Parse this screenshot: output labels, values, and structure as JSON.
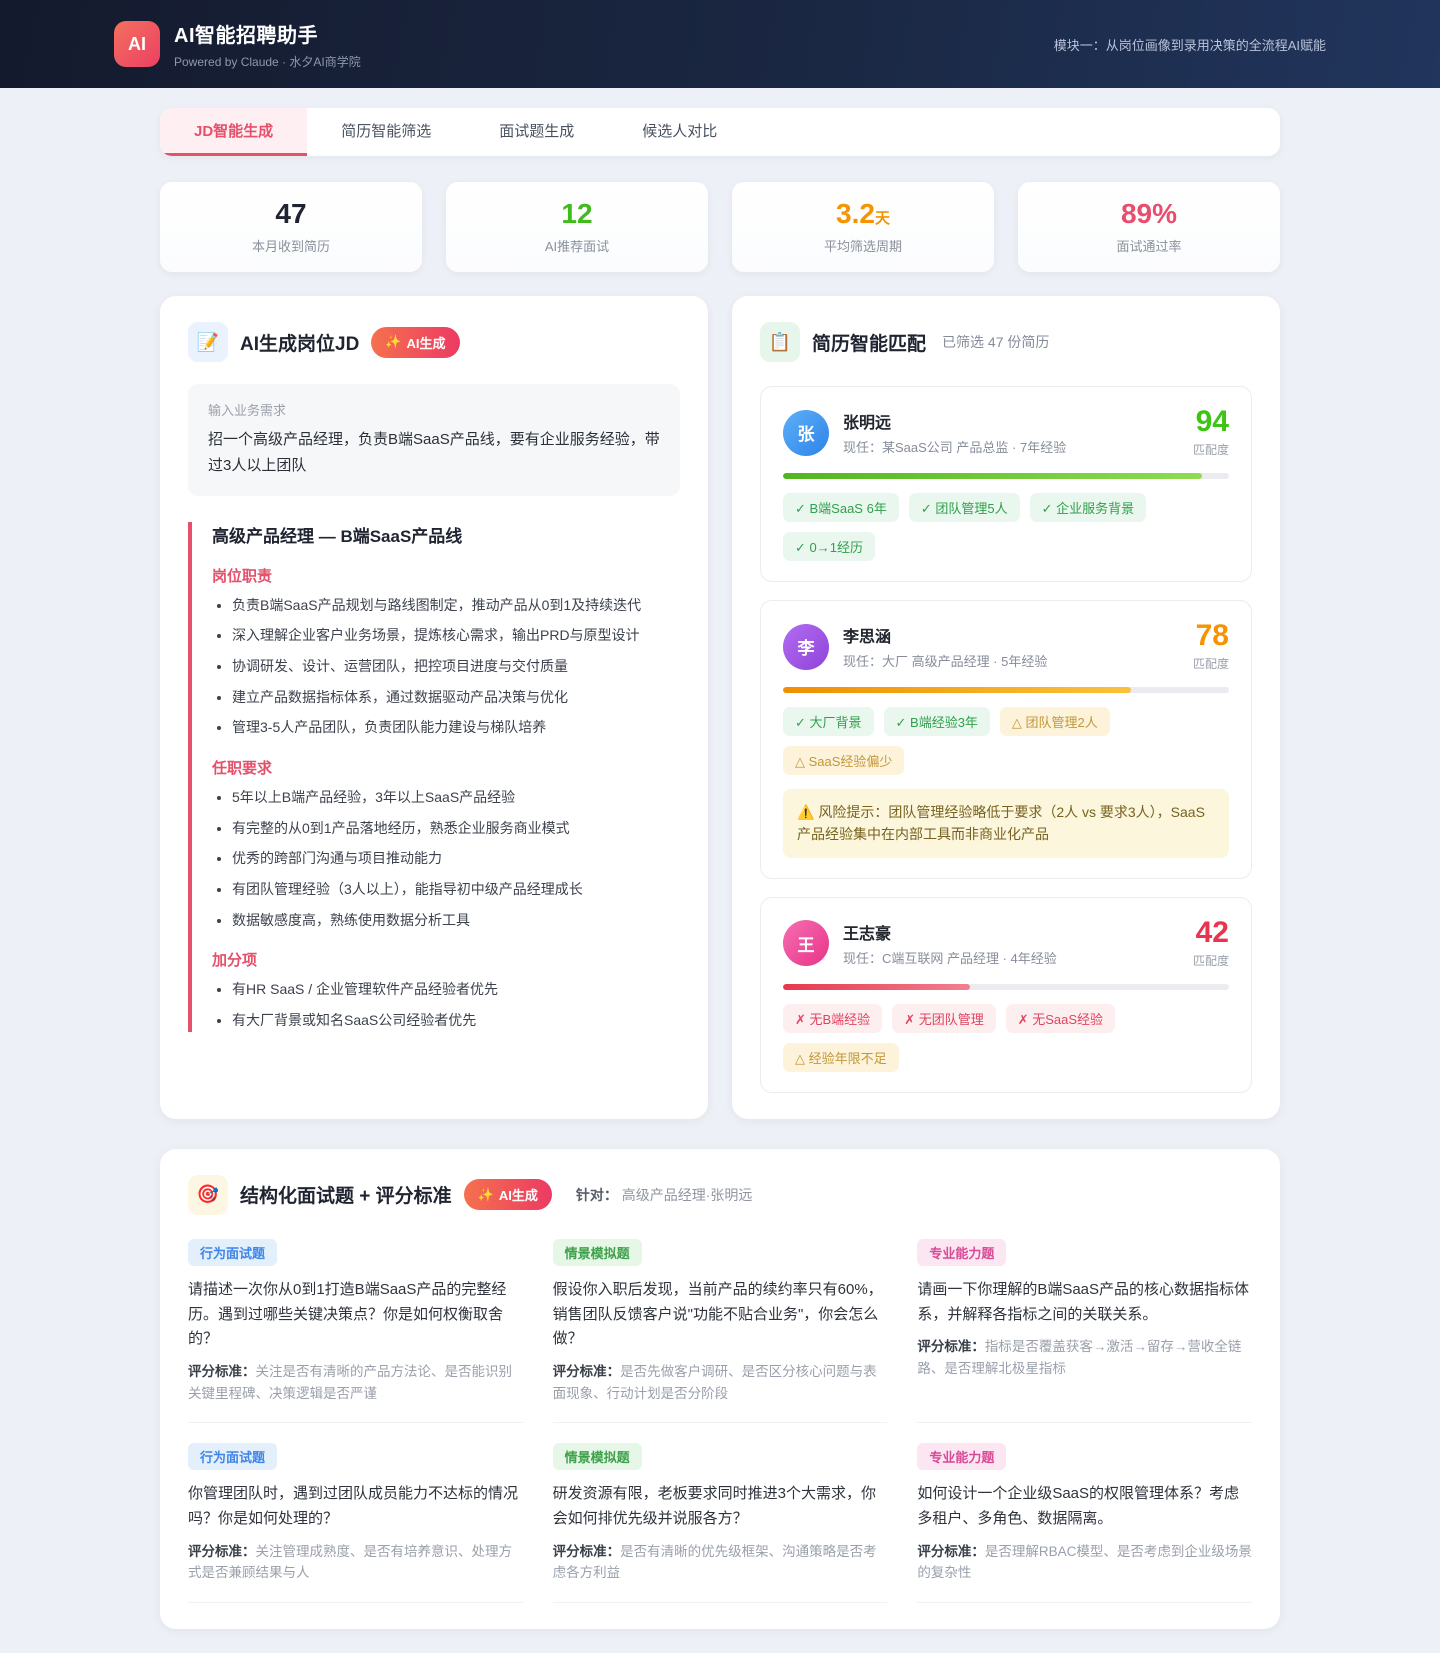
{
  "header": {
    "logo_text": "AI",
    "title": "AI智能招聘助手",
    "subtitle": "Powered by Claude · 水夕AI商学院",
    "module_label": "模块一：从岗位画像到录用决策的全流程AI赋能"
  },
  "tabs": [
    {
      "label": "JD智能生成",
      "state": "active"
    },
    {
      "label": "简历智能筛选"
    },
    {
      "label": "面试题生成"
    },
    {
      "label": "候选人对比"
    }
  ],
  "stats": [
    {
      "value": "47",
      "unit": "",
      "label": "本月收到简历",
      "color": "#1f2430"
    },
    {
      "value": "12",
      "unit": "",
      "label": "AI推荐面试",
      "color": "#3fbb1c"
    },
    {
      "value": "3.2",
      "unit": "天",
      "label": "平均筛选周期",
      "color": "#f59300"
    },
    {
      "value": "89%",
      "unit": "",
      "label": "面试通过率",
      "color": "#ea4c6d"
    }
  ],
  "jd_panel": {
    "icon": "📝",
    "title": "AI生成岗位JD",
    "badge_icon": "✨",
    "badge": "AI生成",
    "input_label": "输入业务需求",
    "input_value": "招一个高级产品经理，负责B端SaaS产品线，要有企业服务经验，带过3人以上团队",
    "jd_title": "高级产品经理 — B端SaaS产品线",
    "sections": [
      {
        "heading": "岗位职责",
        "items": [
          "负责B端SaaS产品规划与路线图制定，推动产品从0到1及持续迭代",
          "深入理解企业客户业务场景，提炼核心需求，输出PRD与原型设计",
          "协调研发、设计、运营团队，把控项目进度与交付质量",
          "建立产品数据指标体系，通过数据驱动产品决策与优化",
          "管理3-5人产品团队，负责团队能力建设与梯队培养"
        ]
      },
      {
        "heading": "任职要求",
        "items": [
          "5年以上B端产品经验，3年以上SaaS产品经验",
          "有完整的从0到1产品落地经历，熟悉企业服务商业模式",
          "优秀的跨部门沟通与项目推动能力",
          "有团队管理经验（3人以上），能指导初中级产品经理成长",
          "数据敏感度高，熟练使用数据分析工具"
        ]
      },
      {
        "heading": "加分项",
        "items": [
          "有HR SaaS / 企业管理软件产品经验者优先",
          "有大厂背景或知名SaaS公司经验者优先"
        ]
      }
    ]
  },
  "match_panel": {
    "icon": "📋",
    "title": "简历智能匹配",
    "subtitle": "已筛选 47 份简历",
    "score_label": "匹配度",
    "candidates": [
      {
        "initial": "张",
        "name": "张明远",
        "current": "现任：某SaaS公司 产品总监 · 7年经验",
        "score": "94",
        "score_color": "#3ec414",
        "bar_percent": 94,
        "bar": {
          "from": "#52b51e",
          "to": "#8fdc51"
        },
        "avatar": {
          "from": "#5db0f8",
          "to": "#2e83e8"
        },
        "tags": [
          {
            "text": "✓ B端SaaS 6年",
            "type": "good"
          },
          {
            "text": "✓ 团队管理5人",
            "type": "good"
          },
          {
            "text": "✓ 企业服务背景",
            "type": "good"
          },
          {
            "text": "✓ 0→1经历",
            "type": "good"
          }
        ]
      },
      {
        "initial": "李",
        "name": "李思涵",
        "current": "现任：大厂 高级产品经理 · 5年经验",
        "score": "78",
        "score_color": "#f59300",
        "bar_percent": 78,
        "bar": {
          "from": "#ef9000",
          "to": "#f9c23c"
        },
        "avatar": {
          "from": "#b36cf2",
          "to": "#8e44d8"
        },
        "tags": [
          {
            "text": "✓ 大厂背景",
            "type": "good"
          },
          {
            "text": "✓ B端经验3年",
            "type": "good"
          },
          {
            "text": "△ 团队管理2人",
            "type": "warn"
          },
          {
            "text": "△ SaaS经验偏少",
            "type": "warn"
          }
        ],
        "risk_icon": "⚠️",
        "risk": "风险提示：团队管理经验略低于要求（2人 vs 要求3人），SaaS产品经验集中在内部工具而非商业化产品"
      },
      {
        "initial": "王",
        "name": "王志豪",
        "current": "现任：C端互联网 产品经理 · 4年经验",
        "score": "42",
        "score_color": "#e8344e",
        "bar_percent": 42,
        "bar": {
          "from": "#e5384e",
          "to": "#f2808f"
        },
        "avatar": {
          "from": "#f56fb0",
          "to": "#e9338a"
        },
        "tags": [
          {
            "text": "✗ 无B端经验",
            "type": "bad"
          },
          {
            "text": "✗ 无团队管理",
            "type": "bad"
          },
          {
            "text": "✗ 无SaaS经验",
            "type": "bad"
          },
          {
            "text": "△ 经验年限不足",
            "type": "warn"
          }
        ]
      }
    ]
  },
  "interview_panel": {
    "icon": "🎯",
    "title": "结构化面试题 + 评分标准",
    "badge_icon": "✨",
    "badge": "AI生成",
    "target_label": "针对：",
    "target_value": "高级产品经理·张明远",
    "criteria_label": "评分标准：",
    "questions": [
      {
        "category": "行为面试题",
        "type": "behavior",
        "question": "请描述一次你从0到1打造B端SaaS产品的完整经历。遇到过哪些关键决策点？你是如何权衡取舍的？",
        "criteria": "关注是否有清晰的产品方法论、是否能识别关键里程碑、决策逻辑是否严谨"
      },
      {
        "category": "情景模拟题",
        "type": "scenario",
        "question": "假设你入职后发现，当前产品的续约率只有60%，销售团队反馈客户说\"功能不贴合业务\"，你会怎么做？",
        "criteria": "是否先做客户调研、是否区分核心问题与表面现象、行动计划是否分阶段"
      },
      {
        "category": "专业能力题",
        "type": "professional",
        "question": "请画一下你理解的B端SaaS产品的核心数据指标体系，并解释各指标之间的关联关系。",
        "criteria": "指标是否覆盖获客→激活→留存→营收全链路、是否理解北极星指标"
      },
      {
        "category": "行为面试题",
        "type": "behavior",
        "question": "你管理团队时，遇到过团队成员能力不达标的情况吗？你是如何处理的？",
        "criteria": "关注管理成熟度、是否有培养意识、处理方式是否兼顾结果与人"
      },
      {
        "category": "情景模拟题",
        "type": "scenario",
        "question": "研发资源有限，老板要求同时推进3个大需求，你会如何排优先级并说服各方？",
        "criteria": "是否有清晰的优先级框架、沟通策略是否考虑各方利益"
      },
      {
        "category": "专业能力题",
        "type": "professional",
        "question": "如何设计一个企业级SaaS的权限管理体系？考虑多租户、多角色、数据隔离。",
        "criteria": "是否理解RBAC模型、是否考虑到企业级场景的复杂性"
      }
    ]
  }
}
